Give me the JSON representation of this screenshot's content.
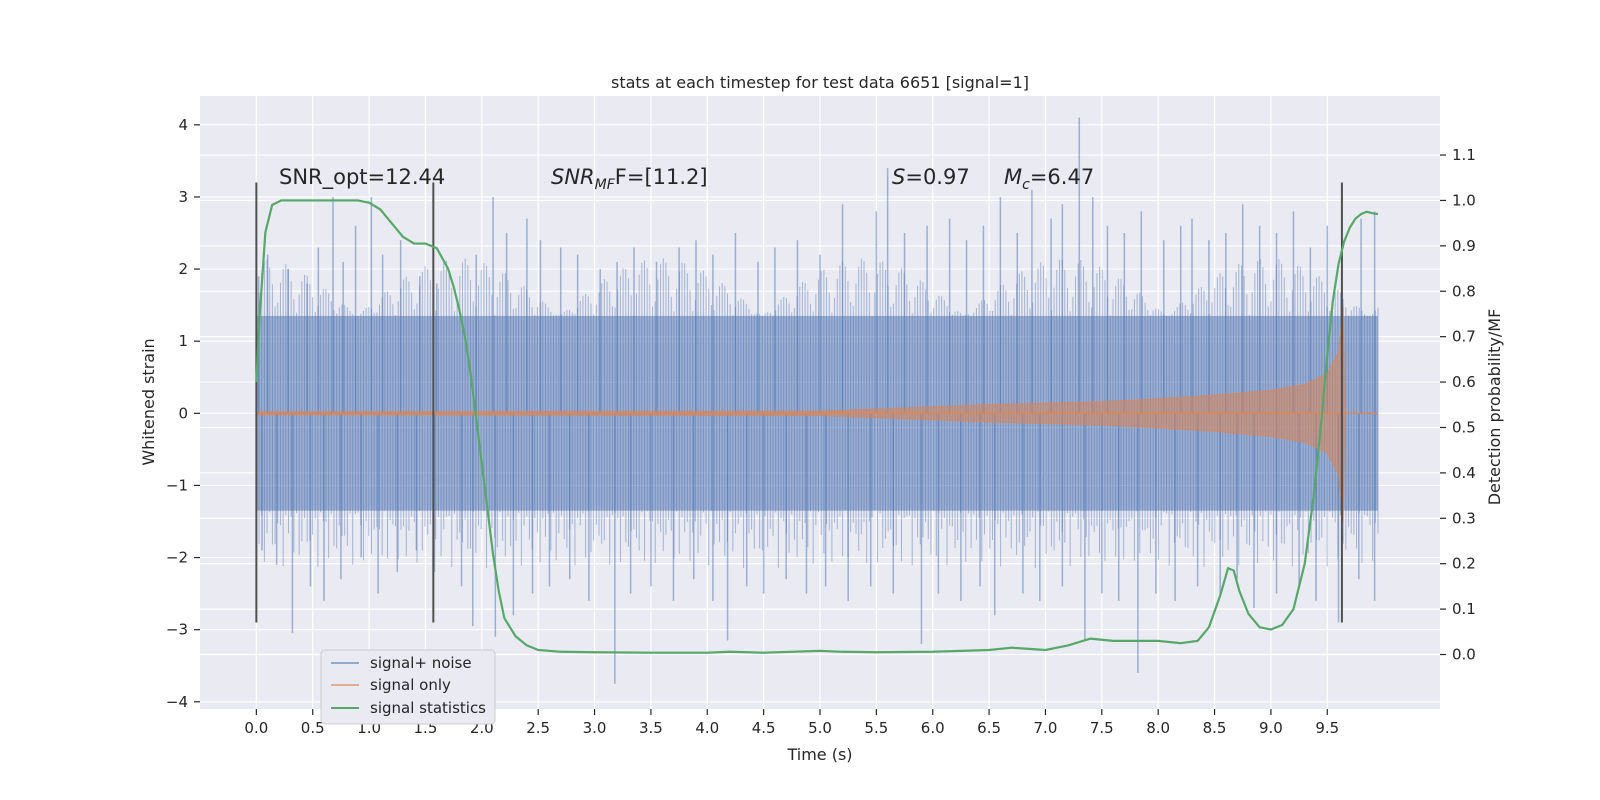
{
  "chart_data": {
    "type": "line",
    "title": "stats at each timestep for test data 6651 [signal=1]",
    "xlabel": "Time (s)",
    "ylabel": "Whitened strain",
    "y2label": "Detection probability/MF",
    "xlim": [
      -0.5,
      10.5
    ],
    "ylim": [
      -4.1,
      4.4
    ],
    "y2lim": [
      -0.12,
      1.23
    ],
    "xticks": [
      "0.0",
      "0.5",
      "1.0",
      "1.5",
      "2.0",
      "2.5",
      "3.0",
      "3.5",
      "4.0",
      "4.5",
      "5.0",
      "5.5",
      "6.0",
      "6.5",
      "7.0",
      "7.5",
      "8.0",
      "8.5",
      "9.0",
      "9.5"
    ],
    "xtick_values": [
      0,
      0.5,
      1,
      1.5,
      2,
      2.5,
      3,
      3.5,
      4,
      4.5,
      5,
      5.5,
      6,
      6.5,
      7,
      7.5,
      8,
      8.5,
      9,
      9.5
    ],
    "yticks": [
      "4",
      "3",
      "2",
      "1",
      "0",
      "−1",
      "−2",
      "−3",
      "−4"
    ],
    "ytick_values": [
      4,
      3,
      2,
      1,
      0,
      -1,
      -2,
      -3,
      -4
    ],
    "y2ticks": [
      "1.1",
      "1.0",
      "0.9",
      "0.8",
      "0.7",
      "0.6",
      "0.5",
      "0.4",
      "0.3",
      "0.2",
      "0.1",
      "0.0"
    ],
    "y2tick_values": [
      1.1,
      1.0,
      0.9,
      0.8,
      0.7,
      0.6,
      0.5,
      0.4,
      0.3,
      0.2,
      0.1,
      0.0
    ],
    "annotations": {
      "snr_opt": "SNR_opt=12.44",
      "snr_mf_main": "SNR",
      "snr_mf_sub": "MF",
      "snr_mf_rest": "F=[11.2]",
      "s_main": "S",
      "s_rest": "=0.97",
      "mc_main": "M",
      "mc_sub": "c",
      "mc_rest": "=6.47"
    },
    "vlines_x": [
      0.0,
      1.57,
      9.63
    ],
    "vline_ylim": [
      -2.9,
      3.2
    ],
    "legend": {
      "position": "lower-left",
      "entries": [
        "signal+ noise",
        "signal only",
        "signal statistics"
      ]
    },
    "colors": {
      "noise": "#4C72B0",
      "signal": "#DD8452",
      "stats": "#55A868",
      "vline": "#505050",
      "background": "#EAEAF2",
      "grid": "#FFFFFF"
    },
    "series": [
      {
        "name": "signal+ noise",
        "band": {
          "t_start": 0.0,
          "t_end": 9.95,
          "lower": -1.35,
          "upper": 1.35
        },
        "spikes": [
          [
            0.02,
            1.9
          ],
          [
            0.1,
            2.2
          ],
          [
            0.28,
            2.0
          ],
          [
            0.45,
            1.8
          ],
          [
            0.55,
            2.3
          ],
          [
            0.68,
            3.0
          ],
          [
            0.77,
            2.1
          ],
          [
            0.88,
            2.6
          ],
          [
            1.02,
            3.0
          ],
          [
            1.12,
            2.2
          ],
          [
            1.28,
            2.4
          ],
          [
            1.45,
            1.9
          ],
          [
            1.6,
            1.8
          ],
          [
            1.95,
            2.2
          ],
          [
            2.1,
            3.0
          ],
          [
            2.22,
            2.5
          ],
          [
            2.4,
            2.7
          ],
          [
            2.52,
            2.4
          ],
          [
            2.7,
            2.3
          ],
          [
            2.85,
            2.2
          ],
          [
            3.05,
            2.0
          ],
          [
            3.2,
            2.1
          ],
          [
            3.35,
            2.3
          ],
          [
            3.55,
            2.1
          ],
          [
            3.75,
            2.3
          ],
          [
            3.9,
            2.4
          ],
          [
            4.05,
            2.2
          ],
          [
            4.25,
            2.5
          ],
          [
            4.45,
            2.1
          ],
          [
            4.6,
            2.3
          ],
          [
            4.8,
            2.4
          ],
          [
            5.0,
            2.2
          ],
          [
            5.2,
            2.9
          ],
          [
            5.5,
            2.8
          ],
          [
            5.6,
            3.4
          ],
          [
            5.75,
            2.5
          ],
          [
            5.95,
            2.6
          ],
          [
            6.15,
            2.7
          ],
          [
            6.3,
            2.4
          ],
          [
            6.45,
            2.6
          ],
          [
            6.6,
            3.0
          ],
          [
            6.75,
            2.5
          ],
          [
            6.88,
            3.1
          ],
          [
            7.05,
            2.7
          ],
          [
            7.15,
            2.9
          ],
          [
            7.3,
            4.1
          ],
          [
            7.42,
            3.0
          ],
          [
            7.55,
            2.6
          ],
          [
            7.7,
            2.5
          ],
          [
            7.85,
            2.8
          ],
          [
            8.05,
            2.4
          ],
          [
            8.2,
            2.6
          ],
          [
            8.3,
            2.7
          ],
          [
            8.45,
            2.4
          ],
          [
            8.6,
            2.5
          ],
          [
            8.75,
            2.9
          ],
          [
            8.9,
            2.6
          ],
          [
            9.05,
            2.5
          ],
          [
            9.2,
            2.8
          ],
          [
            9.35,
            2.3
          ],
          [
            9.5,
            2.6
          ],
          [
            9.8,
            2.7
          ],
          [
            9.92,
            2.8
          ],
          [
            0.05,
            -1.9
          ],
          [
            0.18,
            -2.1
          ],
          [
            0.32,
            -3.05
          ],
          [
            0.48,
            -2.4
          ],
          [
            0.6,
            -2.6
          ],
          [
            0.75,
            -2.3
          ],
          [
            0.93,
            -2.0
          ],
          [
            1.08,
            -2.5
          ],
          [
            1.25,
            -2.2
          ],
          [
            1.42,
            -1.9
          ],
          [
            1.58,
            -2.2
          ],
          [
            1.82,
            -2.4
          ],
          [
            1.92,
            -2.95
          ],
          [
            2.12,
            -3.1
          ],
          [
            2.28,
            -2.8
          ],
          [
            2.45,
            -2.5
          ],
          [
            2.6,
            -2.4
          ],
          [
            2.78,
            -2.3
          ],
          [
            2.95,
            -2.6
          ],
          [
            3.18,
            -3.75
          ],
          [
            3.32,
            -2.5
          ],
          [
            3.5,
            -2.4
          ],
          [
            3.7,
            -2.6
          ],
          [
            3.88,
            -2.3
          ],
          [
            4.05,
            -2.6
          ],
          [
            4.18,
            -3.15
          ],
          [
            4.35,
            -2.4
          ],
          [
            4.5,
            -2.5
          ],
          [
            4.7,
            -2.3
          ],
          [
            4.88,
            -2.5
          ],
          [
            5.05,
            -2.4
          ],
          [
            5.25,
            -2.6
          ],
          [
            5.45,
            -2.4
          ],
          [
            5.65,
            -2.5
          ],
          [
            5.9,
            -3.2
          ],
          [
            6.05,
            -2.5
          ],
          [
            6.25,
            -2.6
          ],
          [
            6.42,
            -2.4
          ],
          [
            6.55,
            -2.8
          ],
          [
            6.8,
            -2.5
          ],
          [
            6.95,
            -2.6
          ],
          [
            7.15,
            -2.4
          ],
          [
            7.35,
            -3.15
          ],
          [
            7.5,
            -2.5
          ],
          [
            7.65,
            -2.6
          ],
          [
            7.82,
            -3.6
          ],
          [
            7.98,
            -2.5
          ],
          [
            8.15,
            -2.6
          ],
          [
            8.35,
            -2.4
          ],
          [
            8.55,
            -2.5
          ],
          [
            8.7,
            -2.3
          ],
          [
            8.85,
            -2.7
          ],
          [
            9.05,
            -2.5
          ],
          [
            9.25,
            -2.4
          ],
          [
            9.4,
            -2.6
          ],
          [
            9.6,
            -2.9
          ],
          [
            9.78,
            -2.3
          ],
          [
            9.92,
            -2.6
          ]
        ]
      },
      {
        "name": "signal only",
        "envelope": [
          [
            0.0,
            0.02
          ],
          [
            5.0,
            0.03
          ],
          [
            5.5,
            0.06
          ],
          [
            6.0,
            0.09
          ],
          [
            6.5,
            0.12
          ],
          [
            7.0,
            0.14
          ],
          [
            7.5,
            0.16
          ],
          [
            8.0,
            0.2
          ],
          [
            8.5,
            0.25
          ],
          [
            9.0,
            0.32
          ],
          [
            9.3,
            0.4
          ],
          [
            9.5,
            0.55
          ],
          [
            9.6,
            0.85
          ],
          [
            9.64,
            1.5
          ],
          [
            9.66,
            0.0
          ],
          [
            9.95,
            0.0
          ]
        ]
      },
      {
        "name": "signal statistics",
        "x": [
          0.0,
          0.03,
          0.08,
          0.14,
          0.22,
          0.35,
          0.5,
          0.7,
          0.9,
          1.0,
          1.1,
          1.2,
          1.3,
          1.4,
          1.5,
          1.6,
          1.7,
          1.75,
          1.8,
          1.85,
          1.9,
          1.95,
          2.0,
          2.05,
          2.1,
          2.15,
          2.2,
          2.3,
          2.4,
          2.5,
          2.7,
          3.0,
          3.5,
          4.0,
          4.2,
          4.5,
          5.0,
          5.2,
          5.5,
          6.0,
          6.5,
          6.7,
          7.0,
          7.2,
          7.4,
          7.6,
          8.0,
          8.2,
          8.35,
          8.45,
          8.55,
          8.62,
          8.67,
          8.72,
          8.8,
          8.9,
          9.0,
          9.1,
          9.2,
          9.3,
          9.38,
          9.45,
          9.5,
          9.55,
          9.6,
          9.65,
          9.7,
          9.75,
          9.8,
          9.85,
          9.9,
          9.95
        ],
        "y": [
          0.6,
          0.75,
          0.93,
          0.99,
          1.0,
          1.0,
          1.0,
          1.0,
          1.0,
          0.995,
          0.98,
          0.95,
          0.92,
          0.905,
          0.905,
          0.895,
          0.85,
          0.81,
          0.76,
          0.7,
          0.62,
          0.52,
          0.42,
          0.32,
          0.22,
          0.14,
          0.08,
          0.04,
          0.02,
          0.01,
          0.006,
          0.005,
          0.004,
          0.004,
          0.006,
          0.004,
          0.008,
          0.006,
          0.005,
          0.006,
          0.01,
          0.015,
          0.01,
          0.02,
          0.035,
          0.03,
          0.03,
          0.025,
          0.03,
          0.06,
          0.13,
          0.19,
          0.185,
          0.14,
          0.09,
          0.06,
          0.055,
          0.065,
          0.1,
          0.2,
          0.35,
          0.52,
          0.66,
          0.78,
          0.86,
          0.91,
          0.94,
          0.96,
          0.97,
          0.975,
          0.972,
          0.97
        ]
      }
    ]
  }
}
